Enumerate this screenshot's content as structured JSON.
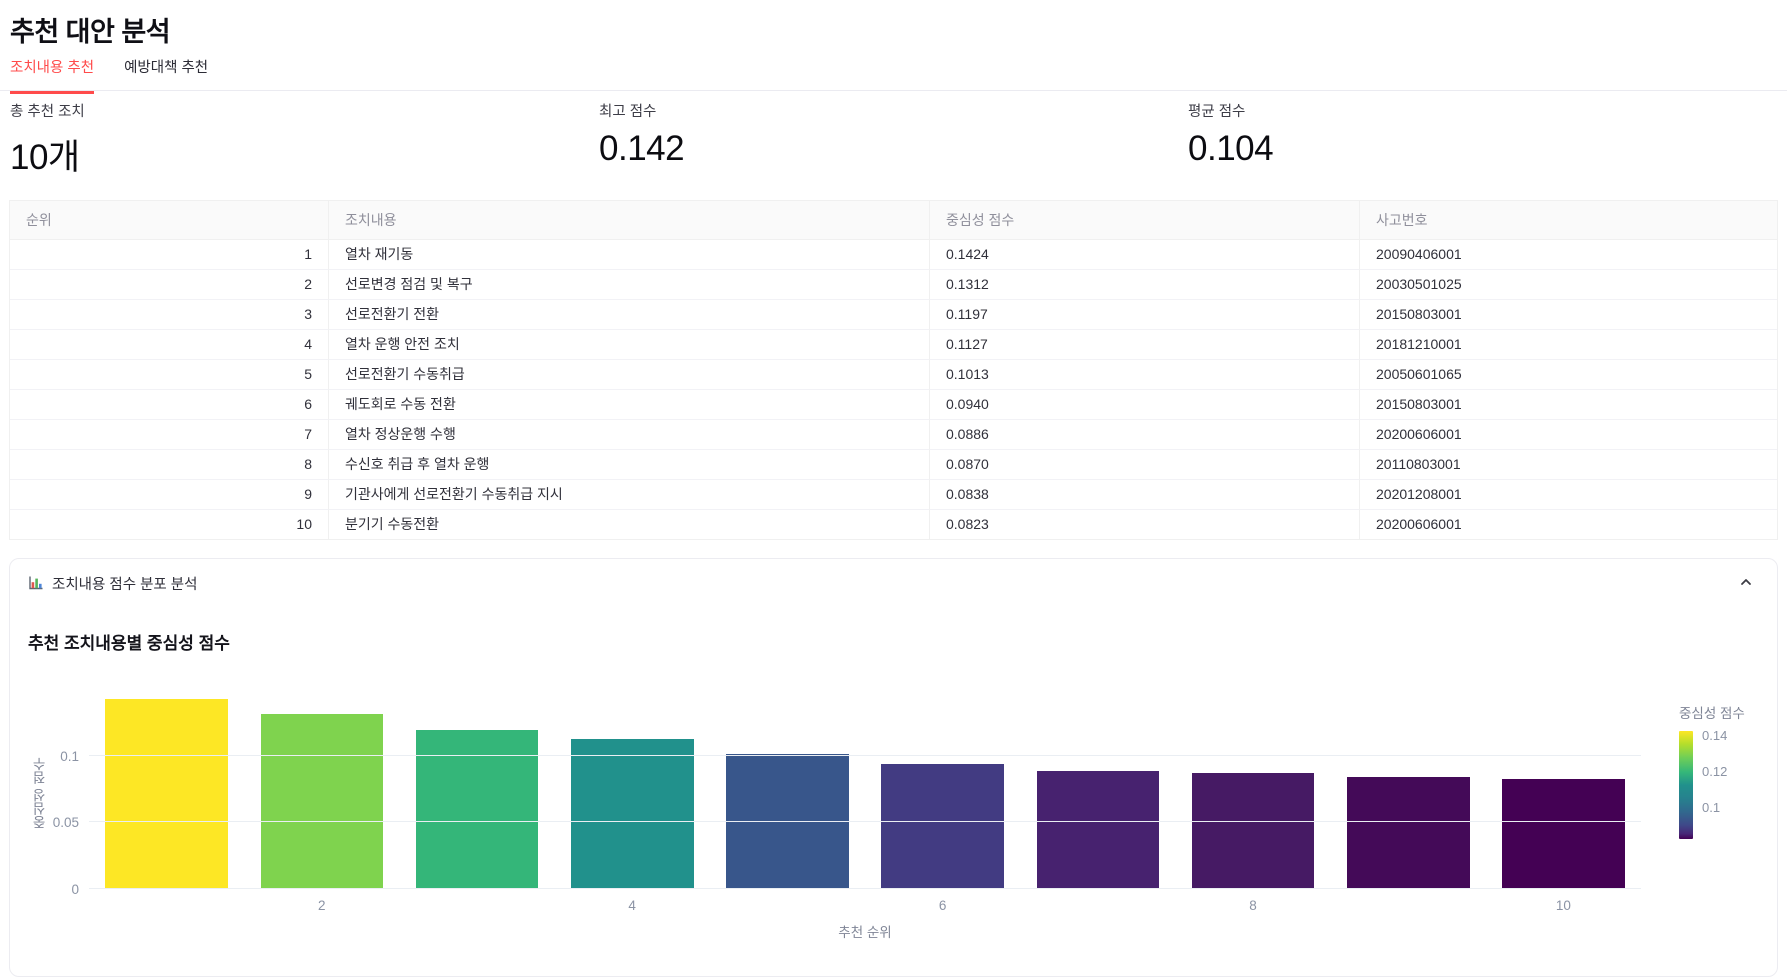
{
  "page": {
    "title": "추천 대안 분석"
  },
  "tabs": [
    {
      "label": "조치내용 추천",
      "active": true
    },
    {
      "label": "예방대책 추천",
      "active": false
    }
  ],
  "metrics": [
    {
      "label": "총 추천 조치",
      "value": "10개"
    },
    {
      "label": "최고 점수",
      "value": "0.142"
    },
    {
      "label": "평균 점수",
      "value": "0.104"
    }
  ],
  "table": {
    "columns": [
      "순위",
      "조치내용",
      "중심성 점수",
      "사고번호"
    ],
    "rows": [
      [
        "1",
        "열차 재기동",
        "0.1424",
        "20090406001"
      ],
      [
        "2",
        "선로변경 점검 및 복구",
        "0.1312",
        "20030501025"
      ],
      [
        "3",
        "선로전환기 전환",
        "0.1197",
        "20150803001"
      ],
      [
        "4",
        "열차 운행 안전 조치",
        "0.1127",
        "20181210001"
      ],
      [
        "5",
        "선로전환기 수동취급",
        "0.1013",
        "20050601065"
      ],
      [
        "6",
        "궤도회로 수동 전환",
        "0.0940",
        "20150803001"
      ],
      [
        "7",
        "열차 정상운행 수행",
        "0.0886",
        "20200606001"
      ],
      [
        "8",
        "수신호 취급 후 열차 운행",
        "0.0870",
        "20110803001"
      ],
      [
        "9",
        "기관사에게 선로전환기 수동취급 지시",
        "0.0838",
        "20201208001"
      ],
      [
        "10",
        "분기기 수동전환",
        "0.0823",
        "20200606001"
      ]
    ]
  },
  "chart_section": {
    "header": "조치내용 점수 분포 분석",
    "icon": "bar-chart-icon",
    "collapse_icon": "chevron-up-icon"
  },
  "chart_data": {
    "type": "bar",
    "title": "추천 조치내용별 중심성 점수",
    "xlabel": "추천 순위",
    "ylabel": "중심성 점수",
    "x": [
      1,
      2,
      3,
      4,
      5,
      6,
      7,
      8,
      9,
      10
    ],
    "values": [
      0.1424,
      0.1312,
      0.1197,
      0.1127,
      0.1013,
      0.094,
      0.0886,
      0.087,
      0.0838,
      0.0823
    ],
    "bar_colors": [
      "#fde725",
      "#7fd34e",
      "#34b679",
      "#21918c",
      "#38568b",
      "#423b82",
      "#47226f",
      "#461a64",
      "#440a58",
      "#440154"
    ],
    "ylim": [
      0,
      0.15
    ],
    "yticks": [
      0,
      0.05,
      0.1
    ],
    "ytick_labels": [
      "0",
      "0.05",
      "0.1"
    ],
    "xticks": [
      2,
      4,
      6,
      8,
      10
    ],
    "grid": true,
    "colorscale": "viridis",
    "legend_position": "right-colorbar",
    "colorbar": {
      "title": "중심성 점수",
      "ticks": [
        0.14,
        0.12,
        0.1
      ],
      "tick_labels": [
        "0.14",
        "0.12",
        "0.1"
      ],
      "min": 0.0823,
      "max": 0.1424
    }
  },
  "colors": {
    "accent_red": "#ff4b4b"
  }
}
